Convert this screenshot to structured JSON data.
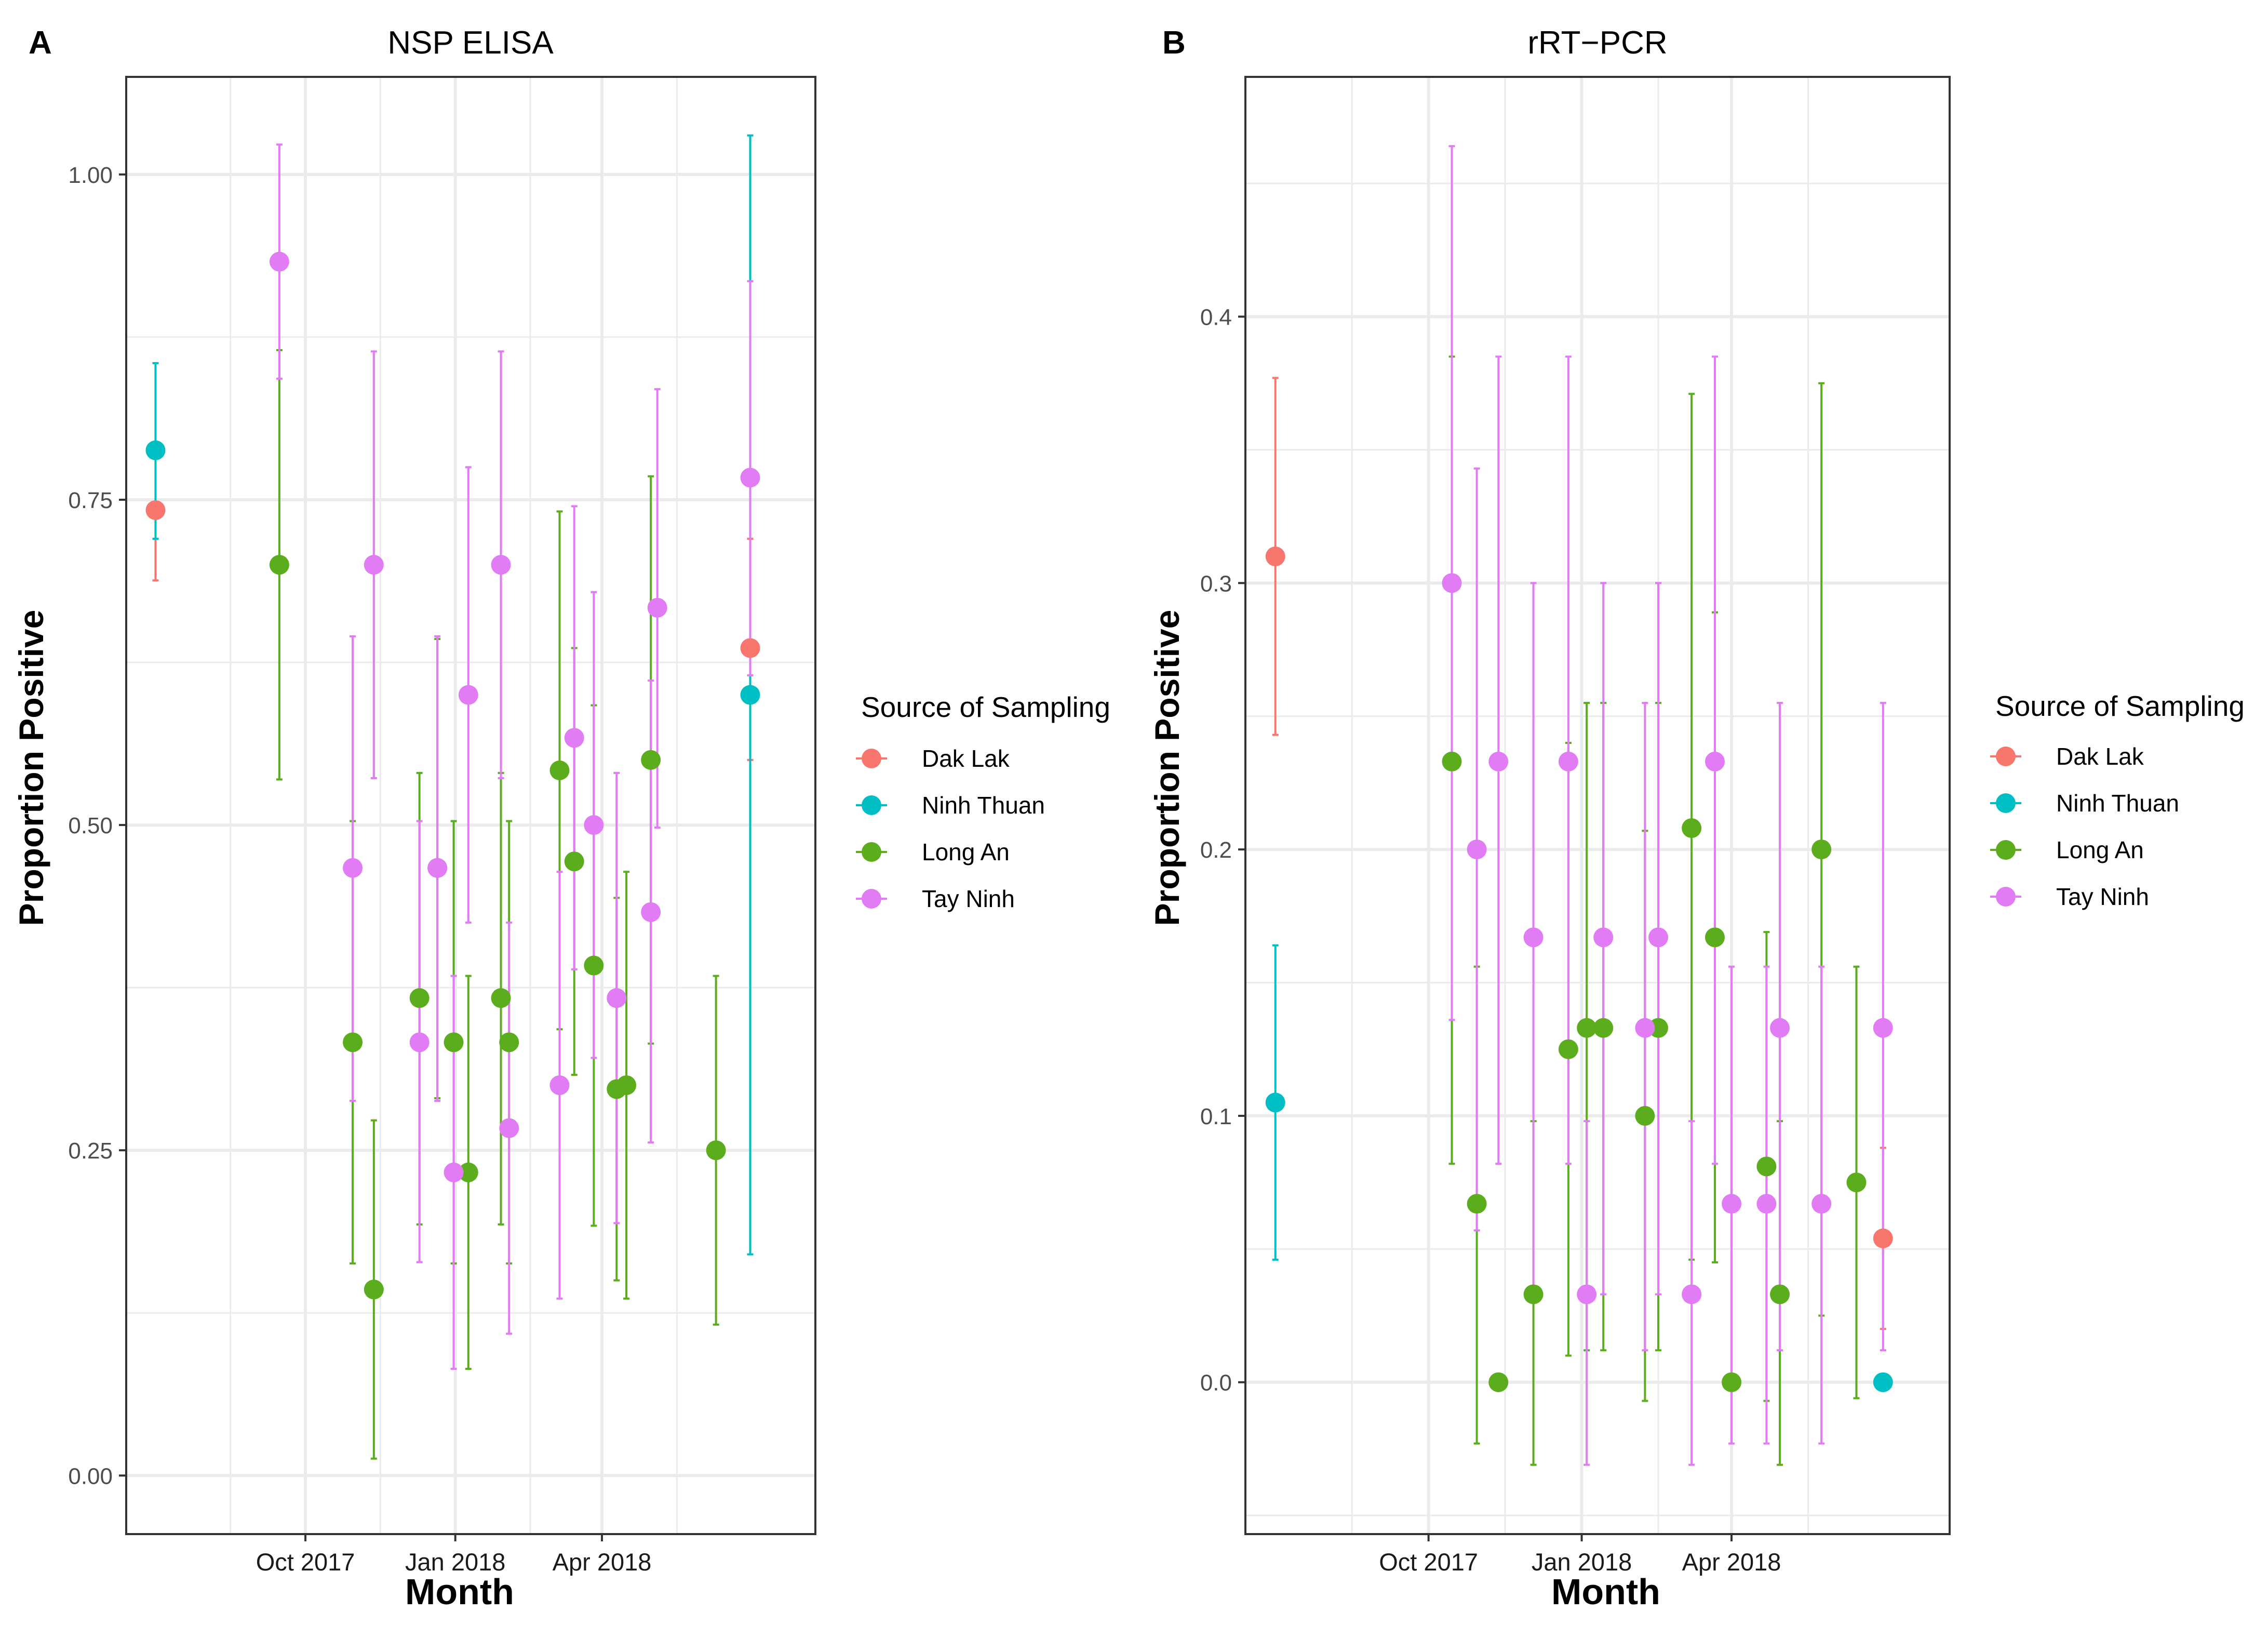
{
  "chart_data": [
    {
      "panel_label": "A",
      "type": "scatter",
      "title": "NSP ELISA",
      "xlabel": "Month",
      "ylabel": "Proportion Positive",
      "xlim": [
        "2017-06-13",
        "2018-08-10"
      ],
      "ylim": [
        -0.045,
        1.075
      ],
      "x_ticks": [
        {
          "date": "2017-10-01",
          "label": "Oct 2017"
        },
        {
          "date": "2018-01-01",
          "label": "Jan 2018"
        },
        {
          "date": "2018-04-01",
          "label": "Apr 2018"
        }
      ],
      "y_ticks": [
        {
          "value": 0.0,
          "label": "0.00"
        },
        {
          "value": 0.25,
          "label": "0.25"
        },
        {
          "value": 0.5,
          "label": "0.50"
        },
        {
          "value": 0.75,
          "label": "0.75"
        },
        {
          "value": 1.0,
          "label": "1.00"
        }
      ],
      "legend_title": "Source of Sampling",
      "legend_position": "right",
      "series": [
        {
          "name": "Dak Lak",
          "color": "#F8766D",
          "points": [
            {
              "x": "2017-07-01",
              "y": 0.742,
              "lo": 0.688,
              "hi": 0.79
            },
            {
              "x": "2018-07-01",
              "y": 0.636,
              "lo": 0.55,
              "hi": 0.72
            }
          ]
        },
        {
          "name": "Ninh Thuan",
          "color": "#00BFC4",
          "points": [
            {
              "x": "2017-07-01",
              "y": 0.788,
              "lo": 0.72,
              "hi": 0.855
            },
            {
              "x": "2018-07-01",
              "y": 0.6,
              "lo": 0.17,
              "hi": 1.03
            }
          ]
        },
        {
          "name": "Long An",
          "color": "#5BAD1D",
          "points": [
            {
              "x": "2017-09-15",
              "y": 0.7,
              "lo": 0.535,
              "hi": 0.865
            },
            {
              "x": "2017-10-30",
              "y": 0.333,
              "lo": 0.163,
              "hi": 0.503
            },
            {
              "x": "2017-11-12",
              "y": 0.143,
              "lo": 0.013,
              "hi": 0.273
            },
            {
              "x": "2017-12-10",
              "y": 0.367,
              "lo": 0.193,
              "hi": 0.54
            },
            {
              "x": "2017-12-21",
              "y": 0.467,
              "lo": 0.29,
              "hi": 0.643
            },
            {
              "x": "2017-12-31",
              "y": 0.333,
              "lo": 0.163,
              "hi": 0.503
            },
            {
              "x": "2018-01-09",
              "y": 0.233,
              "lo": 0.082,
              "hi": 0.384
            },
            {
              "x": "2018-01-29",
              "y": 0.367,
              "lo": 0.193,
              "hi": 0.54
            },
            {
              "x": "2018-02-03",
              "y": 0.333,
              "lo": 0.163,
              "hi": 0.503
            },
            {
              "x": "2018-03-06",
              "y": 0.542,
              "lo": 0.343,
              "hi": 0.741
            },
            {
              "x": "2018-03-15",
              "y": 0.472,
              "lo": 0.308,
              "hi": 0.636
            },
            {
              "x": "2018-03-27",
              "y": 0.392,
              "lo": 0.192,
              "hi": 0.592
            },
            {
              "x": "2018-04-10",
              "y": 0.297,
              "lo": 0.15,
              "hi": 0.444
            },
            {
              "x": "2018-04-16",
              "y": 0.3,
              "lo": 0.136,
              "hi": 0.464
            },
            {
              "x": "2018-05-01",
              "y": 0.55,
              "lo": 0.332,
              "hi": 0.768
            },
            {
              "x": "2018-06-10",
              "y": 0.25,
              "lo": 0.116,
              "hi": 0.384
            }
          ]
        },
        {
          "name": "Tay Ninh",
          "color": "#E27CF5",
          "points": [
            {
              "x": "2017-09-15",
              "y": 0.933,
              "lo": 0.843,
              "hi": 1.023
            },
            {
              "x": "2017-10-30",
              "y": 0.467,
              "lo": 0.288,
              "hi": 0.645
            },
            {
              "x": "2017-11-12",
              "y": 0.7,
              "lo": 0.536,
              "hi": 0.864
            },
            {
              "x": "2017-12-10",
              "y": 0.333,
              "lo": 0.164,
              "hi": 0.503
            },
            {
              "x": "2017-12-21",
              "y": 0.467,
              "lo": 0.288,
              "hi": 0.645
            },
            {
              "x": "2017-12-31",
              "y": 0.233,
              "lo": 0.082,
              "hi": 0.384
            },
            {
              "x": "2018-01-09",
              "y": 0.6,
              "lo": 0.425,
              "hi": 0.775
            },
            {
              "x": "2018-01-29",
              "y": 0.7,
              "lo": 0.536,
              "hi": 0.864
            },
            {
              "x": "2018-02-03",
              "y": 0.267,
              "lo": 0.109,
              "hi": 0.425
            },
            {
              "x": "2018-03-06",
              "y": 0.3,
              "lo": 0.136,
              "hi": 0.464
            },
            {
              "x": "2018-03-15",
              "y": 0.567,
              "lo": 0.389,
              "hi": 0.745
            },
            {
              "x": "2018-03-27",
              "y": 0.5,
              "lo": 0.321,
              "hi": 0.679
            },
            {
              "x": "2018-04-10",
              "y": 0.367,
              "lo": 0.194,
              "hi": 0.54
            },
            {
              "x": "2018-05-01",
              "y": 0.433,
              "lo": 0.256,
              "hi": 0.611
            },
            {
              "x": "2018-05-05",
              "y": 0.667,
              "lo": 0.498,
              "hi": 0.835
            },
            {
              "x": "2018-07-01",
              "y": 0.767,
              "lo": 0.615,
              "hi": 0.918
            }
          ]
        }
      ]
    },
    {
      "panel_label": "B",
      "type": "scatter",
      "title": "rRT−PCR",
      "xlabel": "Month",
      "ylabel": "Proportion Positive",
      "xlim": [
        "2017-06-13",
        "2018-08-10"
      ],
      "ylim": [
        -0.057,
        0.49
      ],
      "x_ticks": [
        {
          "date": "2017-10-01",
          "label": "Oct 2017"
        },
        {
          "date": "2018-01-01",
          "label": "Jan 2018"
        },
        {
          "date": "2018-04-01",
          "label": "Apr 2018"
        }
      ],
      "y_ticks": [
        {
          "value": 0.0,
          "label": "0.0"
        },
        {
          "value": 0.1,
          "label": "0.1"
        },
        {
          "value": 0.2,
          "label": "0.2"
        },
        {
          "value": 0.3,
          "label": "0.3"
        },
        {
          "value": 0.4,
          "label": "0.4"
        }
      ],
      "legend_title": "Source of Sampling",
      "legend_position": "right",
      "series": [
        {
          "name": "Dak Lak",
          "color": "#F8766D",
          "points": [
            {
              "x": "2017-07-01",
              "y": 0.31,
              "lo": 0.243,
              "hi": 0.377
            },
            {
              "x": "2018-07-01",
              "y": 0.054,
              "lo": 0.02,
              "hi": 0.088
            }
          ]
        },
        {
          "name": "Ninh Thuan",
          "color": "#00BFC4",
          "points": [
            {
              "x": "2017-07-01",
              "y": 0.105,
              "lo": 0.046,
              "hi": 0.164
            },
            {
              "x": "2018-07-01",
              "y": 0.0,
              "lo": 0.0,
              "hi": 0.0
            }
          ]
        },
        {
          "name": "Long An",
          "color": "#5BAD1D",
          "points": [
            {
              "x": "2017-10-15",
              "y": 0.233,
              "lo": 0.082,
              "hi": 0.385
            },
            {
              "x": "2017-10-30",
              "y": 0.067,
              "lo": -0.023,
              "hi": 0.156
            },
            {
              "x": "2017-11-12",
              "y": 0.0,
              "lo": 0.0,
              "hi": 0.0
            },
            {
              "x": "2017-12-03",
              "y": 0.033,
              "lo": -0.031,
              "hi": 0.098
            },
            {
              "x": "2017-12-24",
              "y": 0.125,
              "lo": 0.01,
              "hi": 0.24
            },
            {
              "x": "2018-01-04",
              "y": 0.133,
              "lo": 0.012,
              "hi": 0.255
            },
            {
              "x": "2018-01-14",
              "y": 0.133,
              "lo": 0.012,
              "hi": 0.255
            },
            {
              "x": "2018-02-08",
              "y": 0.1,
              "lo": -0.007,
              "hi": 0.207
            },
            {
              "x": "2018-02-16",
              "y": 0.133,
              "lo": 0.012,
              "hi": 0.255
            },
            {
              "x": "2018-03-08",
              "y": 0.208,
              "lo": 0.046,
              "hi": 0.371
            },
            {
              "x": "2018-03-22",
              "y": 0.167,
              "lo": 0.045,
              "hi": 0.289
            },
            {
              "x": "2018-04-01",
              "y": 0.0,
              "lo": 0.0,
              "hi": 0.0
            },
            {
              "x": "2018-04-22",
              "y": 0.081,
              "lo": -0.007,
              "hi": 0.169
            },
            {
              "x": "2018-04-30",
              "y": 0.033,
              "lo": -0.031,
              "hi": 0.098
            },
            {
              "x": "2018-05-25",
              "y": 0.2,
              "lo": 0.025,
              "hi": 0.375
            },
            {
              "x": "2018-06-15",
              "y": 0.075,
              "lo": -0.006,
              "hi": 0.156
            }
          ]
        },
        {
          "name": "Tay Ninh",
          "color": "#E27CF5",
          "points": [
            {
              "x": "2017-10-15",
              "y": 0.3,
              "lo": 0.136,
              "hi": 0.464
            },
            {
              "x": "2017-10-30",
              "y": 0.2,
              "lo": 0.057,
              "hi": 0.343
            },
            {
              "x": "2017-11-12",
              "y": 0.233,
              "lo": 0.082,
              "hi": 0.385
            },
            {
              "x": "2017-12-03",
              "y": 0.167,
              "lo": 0.033,
              "hi": 0.3
            },
            {
              "x": "2017-12-24",
              "y": 0.233,
              "lo": 0.082,
              "hi": 0.385
            },
            {
              "x": "2018-01-04",
              "y": 0.033,
              "lo": -0.031,
              "hi": 0.098
            },
            {
              "x": "2018-01-14",
              "y": 0.167,
              "lo": 0.033,
              "hi": 0.3
            },
            {
              "x": "2018-02-08",
              "y": 0.133,
              "lo": 0.012,
              "hi": 0.255
            },
            {
              "x": "2018-02-16",
              "y": 0.167,
              "lo": 0.033,
              "hi": 0.3
            },
            {
              "x": "2018-03-08",
              "y": 0.033,
              "lo": -0.031,
              "hi": 0.098
            },
            {
              "x": "2018-03-22",
              "y": 0.233,
              "lo": 0.082,
              "hi": 0.385
            },
            {
              "x": "2018-04-01",
              "y": 0.067,
              "lo": -0.023,
              "hi": 0.156
            },
            {
              "x": "2018-04-22",
              "y": 0.067,
              "lo": -0.023,
              "hi": 0.156
            },
            {
              "x": "2018-04-30",
              "y": 0.133,
              "lo": 0.012,
              "hi": 0.255
            },
            {
              "x": "2018-05-25",
              "y": 0.067,
              "lo": -0.023,
              "hi": 0.156
            },
            {
              "x": "2018-07-01",
              "y": 0.133,
              "lo": 0.012,
              "hi": 0.255
            }
          ]
        }
      ]
    }
  ]
}
